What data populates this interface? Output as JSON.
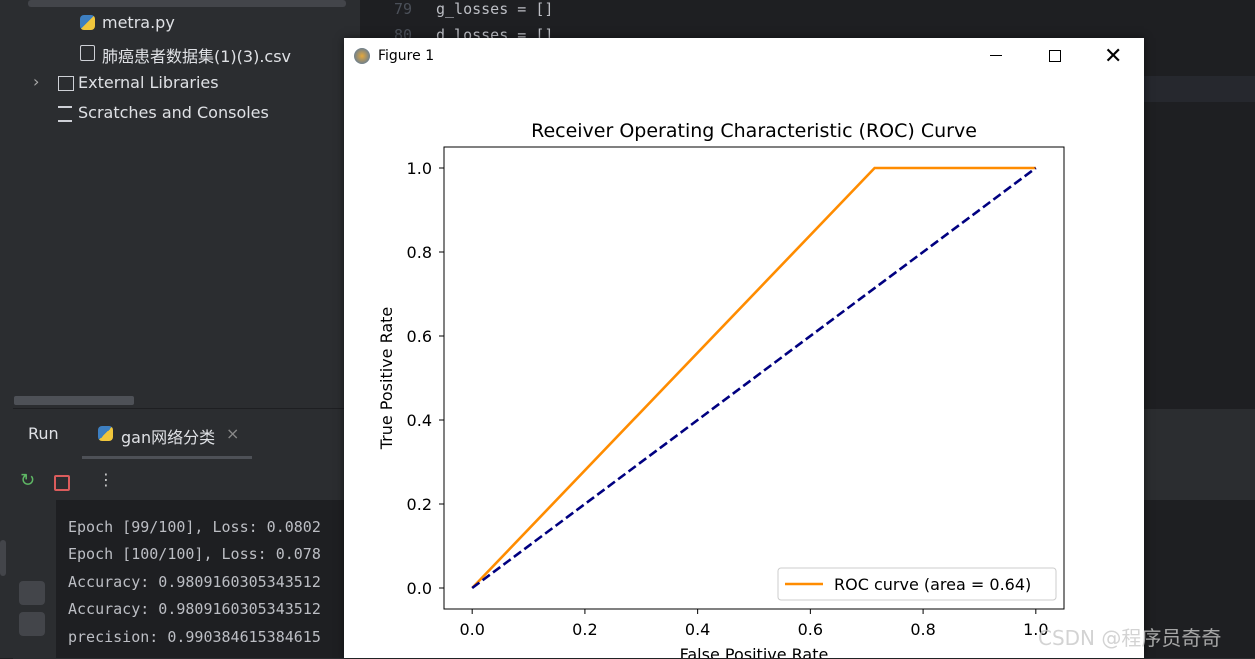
{
  "project_tree": [
    "metra.py",
    "肺癌患者数据集(1)(3).csv",
    "External Libraries",
    "Scratches and Consoles"
  ],
  "editor_lines": [
    {
      "number": "79",
      "code": "g_losses = []"
    },
    {
      "number": "80",
      "code": "d_losses = []"
    }
  ],
  "run_panel": {
    "title": "Run",
    "tab": "gan网络分类",
    "console": [
      "Epoch [99/100], Loss: 0.0802",
      "Epoch [100/100], Loss: 0.078",
      "Accuracy: 0.9809160305343512",
      "Accuracy: 0.9809160305343512",
      "precision: 0.990384615384615"
    ]
  },
  "window_title": "Figure 1",
  "watermark": "CSDN @程序员奇奇",
  "chart_data": {
    "type": "line",
    "title": "Receiver Operating Characteristic (ROC) Curve",
    "xlabel": "False Positive Rate",
    "ylabel": "True Positive Rate",
    "series": [
      {
        "name": "ROC curve (area = 0.64)",
        "color": "darkorange",
        "x": [
          0,
          0.714,
          1
        ],
        "values": [
          0,
          1,
          1
        ]
      },
      {
        "color": "navy",
        "dashed": true,
        "x": [
          0,
          1
        ],
        "values": [
          0,
          1
        ]
      }
    ],
    "xlim": [
      -0.05,
      1.05
    ],
    "ylim": [
      -0.05,
      1.05
    ],
    "xticks": [
      {
        "value": 0,
        "label": "0.0"
      },
      0.2,
      0.4,
      0.6,
      0.8,
      {
        "value": 1,
        "label": "1.0"
      }
    ],
    "yticks": [
      {
        "value": 0,
        "label": "0.0"
      },
      0.2,
      0.4,
      0.6,
      0.8,
      {
        "value": 1,
        "label": "1.0"
      }
    ],
    "legend": "lower right"
  }
}
